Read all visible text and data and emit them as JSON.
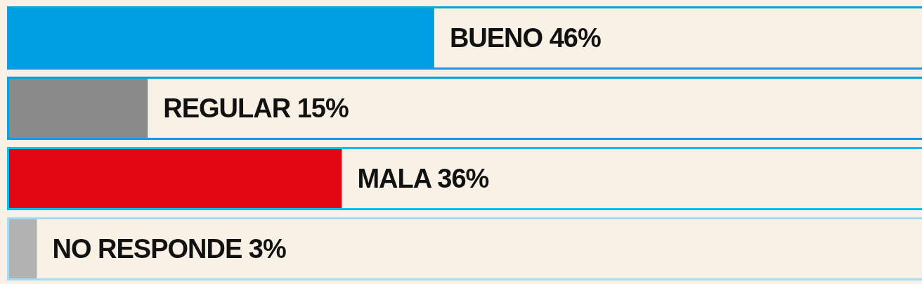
{
  "chart_data": {
    "type": "bar",
    "orientation": "horizontal",
    "categories": [
      null,
      null,
      null,
      null
    ],
    "values": [
      46,
      15,
      36,
      3
    ],
    "colors": [
      "#009fe3",
      "#8a8a8a",
      "#e30613",
      "#b2b2b2"
    ],
    "value_labels": [
      "BUENO 46%",
      "REGULAR 15%",
      "MALA 36%",
      "NO RESPONDE 3%"
    ],
    "tick_labels": false
  }
}
